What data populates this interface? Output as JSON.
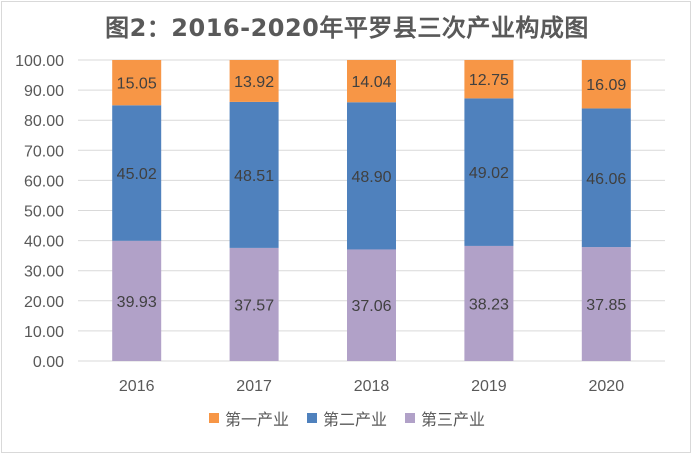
{
  "chart_data": {
    "type": "bar",
    "stacked": true,
    "title": "图2：2016-2020年平罗县三次产业构成图",
    "xlabel": "",
    "ylabel": "",
    "ylim": [
      0,
      100
    ],
    "yticks": [
      "0.00",
      "10.00",
      "20.00",
      "30.00",
      "40.00",
      "50.00",
      "60.00",
      "70.00",
      "80.00",
      "90.00",
      "100.00"
    ],
    "categories": [
      "2016",
      "2017",
      "2018",
      "2019",
      "2020"
    ],
    "grid": true,
    "legend_position": "bottom",
    "series": [
      {
        "name": "第三产业",
        "color": "#b1a1c8",
        "values": [
          39.93,
          37.57,
          37.06,
          38.23,
          37.85
        ],
        "labels": [
          "39.93",
          "37.57",
          "37.06",
          "38.23",
          "37.85"
        ]
      },
      {
        "name": "第二产业",
        "color": "#4f81bd",
        "values": [
          45.02,
          48.51,
          48.9,
          49.02,
          46.06
        ],
        "labels": [
          "45.02",
          "48.51",
          "48.90",
          "49.02",
          "46.06"
        ]
      },
      {
        "name": "第一产业",
        "color": "#f79646",
        "values": [
          15.05,
          13.92,
          14.04,
          12.75,
          16.09
        ],
        "labels": [
          "15.05",
          "13.92",
          "14.04",
          "12.75",
          "16.09"
        ]
      }
    ],
    "legend_order": [
      2,
      1,
      0
    ]
  }
}
